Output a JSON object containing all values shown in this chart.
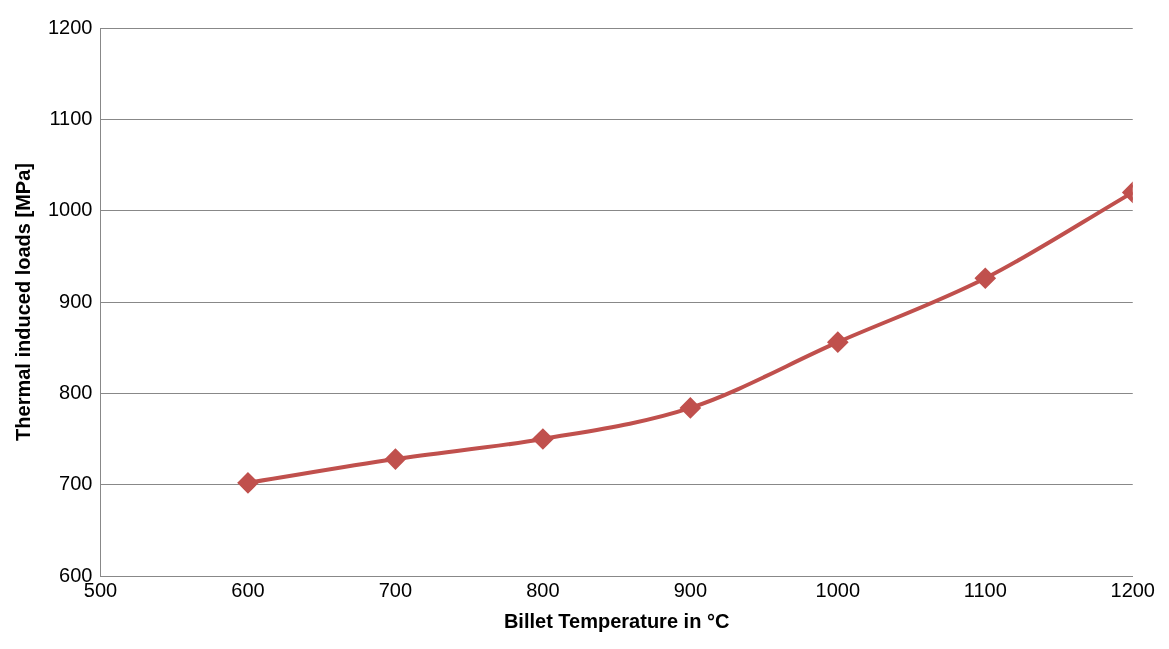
{
  "chart_data": {
    "type": "line",
    "xlabel": "Billet Temperature in °C",
    "ylabel": "Thermal induced loads [MPa]",
    "x": [
      600,
      700,
      800,
      900,
      1000,
      1100,
      1200
    ],
    "series": [
      {
        "color": "#c0504d",
        "values": [
          702,
          728,
          750,
          784,
          856,
          926,
          1020
        ]
      }
    ],
    "xlim": [
      500,
      1200
    ],
    "xticks": [
      500,
      600,
      700,
      800,
      900,
      1000,
      1100,
      1200
    ],
    "ylim": [
      600,
      1200
    ],
    "yticks": [
      600,
      700,
      800,
      900,
      1000,
      1100,
      1200
    ],
    "grid": "y",
    "marker": "diamond",
    "line_style": "solid",
    "legend": false
  }
}
